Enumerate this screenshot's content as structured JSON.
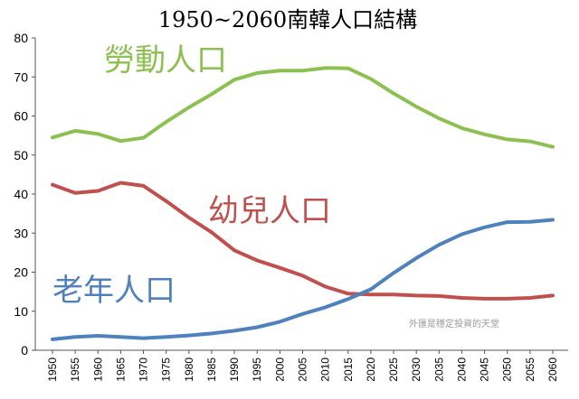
{
  "chart_data": {
    "type": "line",
    "title": "1950~2060南韓人口結構",
    "x": [
      "1950",
      "1955",
      "1960",
      "1965",
      "1970",
      "1975",
      "1980",
      "1985",
      "1990",
      "1995",
      "2000",
      "2005",
      "2010",
      "2015",
      "2020",
      "2025",
      "2030",
      "2035",
      "2040",
      "2045",
      "2050",
      "2055",
      "2060"
    ],
    "ylim": [
      0,
      80
    ],
    "yticks": [
      0,
      10,
      20,
      30,
      40,
      50,
      60,
      70,
      80
    ],
    "series": [
      {
        "name": "勞動人口",
        "color": "#8cc152",
        "values": [
          54.5,
          56.2,
          55.4,
          53.6,
          54.4,
          58.5,
          62.2,
          65.6,
          69.3,
          71.0,
          71.6,
          71.6,
          72.3,
          72.2,
          69.5,
          65.8,
          62.4,
          59.4,
          56.9,
          55.3,
          54.0,
          53.5,
          52.1
        ]
      },
      {
        "name": "幼兒人口",
        "color": "#c0504d",
        "values": [
          42.4,
          40.3,
          40.8,
          42.9,
          42.1,
          38.2,
          34.0,
          30.2,
          25.6,
          23.0,
          21.1,
          19.1,
          16.3,
          14.5,
          14.3,
          14.3,
          14.0,
          13.9,
          13.4,
          13.2,
          13.2,
          13.4,
          14.0
        ]
      },
      {
        "name": "老年人口",
        "color": "#4f81bd",
        "values": [
          2.8,
          3.4,
          3.7,
          3.4,
          3.1,
          3.4,
          3.8,
          4.3,
          5.0,
          5.9,
          7.3,
          9.3,
          11.0,
          13.1,
          15.6,
          19.8,
          23.6,
          27.0,
          29.7,
          31.5,
          32.8,
          32.9,
          33.4
        ]
      }
    ],
    "grid": false,
    "legend": "inline labels"
  },
  "watermark": "外匯是穩定投資的天堂"
}
